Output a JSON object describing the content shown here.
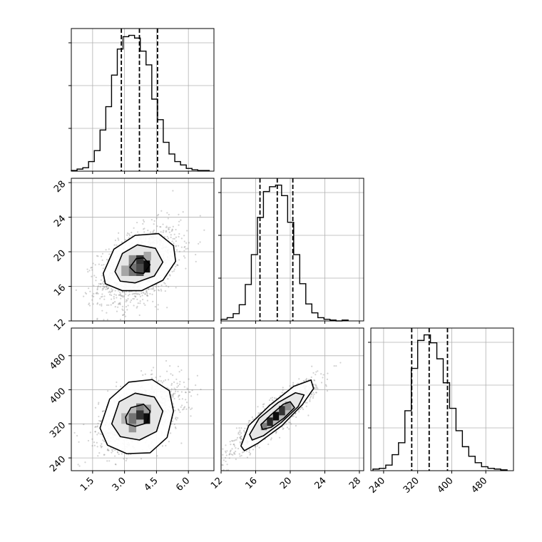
{
  "chart_data": {
    "type": "corner",
    "title": "",
    "grid": true,
    "colors": {
      "line": "#000000",
      "grid": "#b0b0b0",
      "points": "#7f7f7f"
    },
    "parameters": [
      {
        "index": 0,
        "range": [
          0.5,
          7.2
        ],
        "ticks": [
          1.5,
          3.0,
          4.5,
          6.0
        ],
        "tick_labels": [
          "1.5",
          "3.0",
          "4.5",
          "6.0"
        ],
        "quantiles": [
          2.85,
          3.7,
          4.55
        ]
      },
      {
        "index": 1,
        "range": [
          12,
          28.5
        ],
        "ticks": [
          12,
          16,
          20,
          24,
          28
        ],
        "tick_labels": [
          "12",
          "16",
          "20",
          "24",
          "28"
        ],
        "quantiles": [
          16.5,
          18.5,
          20.3
        ]
      },
      {
        "index": 2,
        "range": [
          210,
          545
        ],
        "ticks": [
          240,
          320,
          400,
          480
        ],
        "tick_labels": [
          "240",
          "320",
          "400",
          "480"
        ],
        "quantiles": [
          306,
          347,
          390
        ]
      }
    ],
    "histograms": [
      {
        "param": 0,
        "bin_edges": [
          0.5,
          0.77,
          1.04,
          1.31,
          1.58,
          1.85,
          2.12,
          2.39,
          2.66,
          2.93,
          3.2,
          3.47,
          3.74,
          4.01,
          4.28,
          4.55,
          4.82,
          5.09,
          5.36,
          5.63,
          5.9,
          6.17,
          6.44,
          6.71,
          6.98
        ],
        "counts": [
          1,
          3,
          5,
          14,
          30,
          60,
          94,
          140,
          178,
          196,
          198,
          194,
          175,
          155,
          105,
          75,
          42,
          25,
          14,
          9,
          4,
          2,
          1,
          1
        ]
      },
      {
        "param": 1,
        "bin_edges": [
          12.0,
          12.7,
          13.4,
          14.1,
          14.8,
          15.5,
          16.2,
          16.9,
          17.6,
          18.3,
          19.0,
          19.7,
          20.4,
          21.1,
          21.8,
          22.5,
          23.2,
          23.9,
          24.6,
          25.3,
          26.0,
          26.7
        ],
        "counts": [
          2,
          4,
          9,
          20,
          45,
          82,
          128,
          160,
          166,
          168,
          155,
          122,
          82,
          46,
          21,
          10,
          4,
          2,
          1,
          0,
          1
        ]
      },
      {
        "param": 2,
        "bin_edges": [
          215,
          230,
          245,
          260,
          275,
          290,
          305,
          320,
          335,
          350,
          365,
          380,
          395,
          410,
          425,
          440,
          455,
          470,
          485,
          500,
          515,
          530
        ],
        "counts": [
          2,
          3,
          7,
          20,
          35,
          75,
          128,
          163,
          170,
          160,
          140,
          110,
          78,
          50,
          30,
          18,
          10,
          5,
          3,
          2,
          1
        ]
      }
    ],
    "scatter_panels": [
      {
        "x_param": 0,
        "y_param": 1,
        "mean": [
          3.7,
          18.3
        ],
        "std": [
          0.95,
          2.3
        ],
        "corr": 0.45,
        "contours": [
          {
            "level": 1,
            "points": [
              [
                3.25,
                18.2
              ],
              [
                3.55,
                19.2
              ],
              [
                3.9,
                19.3
              ],
              [
                4.2,
                18.5
              ],
              [
                3.9,
                17.5
              ],
              [
                3.5,
                17.6
              ]
            ]
          },
          {
            "level": 2,
            "points": [
              [
                2.55,
                17.7
              ],
              [
                2.9,
                19.8
              ],
              [
                3.6,
                20.8
              ],
              [
                4.45,
                20.4
              ],
              [
                4.8,
                18.8
              ],
              [
                4.4,
                17.2
              ],
              [
                3.5,
                16.4
              ],
              [
                2.8,
                16.6
              ]
            ]
          },
          {
            "level": 3,
            "points": [
              [
                2.0,
                17.5
              ],
              [
                2.5,
                20.3
              ],
              [
                3.5,
                21.9
              ],
              [
                4.6,
                22.1
              ],
              [
                5.3,
                20.7
              ],
              [
                5.4,
                18.9
              ],
              [
                4.8,
                16.7
              ],
              [
                3.8,
                15.5
              ],
              [
                2.9,
                15.5
              ],
              [
                2.1,
                16.3
              ]
            ]
          }
        ],
        "density_cells": [
          {
            "x": [
              3.2,
              3.55
            ],
            "y": [
              17.2,
              18.6
            ],
            "level": 0.55
          },
          {
            "x": [
              3.55,
              3.9
            ],
            "y": [
              17.2,
              18.6
            ],
            "level": 0.7
          },
          {
            "x": [
              3.55,
              3.9
            ],
            "y": [
              18.6,
              19.6
            ],
            "level": 0.8
          },
          {
            "x": [
              3.9,
              4.2
            ],
            "y": [
              17.6,
              19.0
            ],
            "level": 0.95
          },
          {
            "x": [
              2.85,
              3.2
            ],
            "y": [
              17.2,
              18.4
            ],
            "level": 0.35
          },
          {
            "x": [
              3.2,
              3.55
            ],
            "y": [
              18.6,
              19.6
            ],
            "level": 0.45
          },
          {
            "x": [
              3.9,
              4.25
            ],
            "y": [
              19.0,
              20.0
            ],
            "level": 0.35
          }
        ]
      },
      {
        "x_param": 0,
        "y_param": 2,
        "mean": [
          3.7,
          340
        ],
        "std": [
          0.95,
          40
        ],
        "corr": 0.45,
        "contours": [
          {
            "level": 1,
            "points": [
              [
                3.05,
                336
              ],
              [
                3.3,
                358
              ],
              [
                3.9,
                366
              ],
              [
                4.2,
                350
              ],
              [
                4.05,
                322
              ],
              [
                3.5,
                314
              ],
              [
                3.1,
                320
              ]
            ]
          },
          {
            "level": 2,
            "points": [
              [
                2.4,
                320
              ],
              [
                2.75,
                372
              ],
              [
                3.5,
                392
              ],
              [
                4.4,
                383
              ],
              [
                4.8,
                350
              ],
              [
                4.5,
                302
              ],
              [
                3.7,
                282
              ],
              [
                2.8,
                290
              ]
            ]
          },
          {
            "level": 3,
            "points": [
              [
                1.85,
                310
              ],
              [
                2.3,
                378
              ],
              [
                3.2,
                418
              ],
              [
                4.3,
                424
              ],
              [
                5.1,
                398
              ],
              [
                5.3,
                350
              ],
              [
                5.0,
                288
              ],
              [
                4.2,
                252
              ],
              [
                3.1,
                250
              ],
              [
                2.2,
                270
              ]
            ]
          }
        ],
        "density_cells": [
          {
            "x": [
              3.55,
              3.9
            ],
            "y": [
              330,
              352
            ],
            "level": 0.8
          },
          {
            "x": [
              3.9,
              4.2
            ],
            "y": [
              320,
              345
            ],
            "level": 0.95
          },
          {
            "x": [
              3.2,
              3.55
            ],
            "y": [
              320,
              345
            ],
            "level": 0.55
          },
          {
            "x": [
              3.55,
              3.9
            ],
            "y": [
              352,
              368
            ],
            "level": 0.5
          },
          {
            "x": [
              2.85,
              3.2
            ],
            "y": [
              320,
              345
            ],
            "level": 0.3
          },
          {
            "x": [
              3.2,
              3.55
            ],
            "y": [
              300,
              320
            ],
            "level": 0.4
          },
          {
            "x": [
              3.9,
              4.25
            ],
            "y": [
              345,
              365
            ],
            "level": 0.4
          }
        ]
      },
      {
        "x_param": 1,
        "y_param": 2,
        "mean": [
          18.3,
          340
        ],
        "std": [
          2.3,
          40
        ],
        "corr": 0.9,
        "contours": [
          {
            "level": 1,
            "points": [
              [
                16.6,
                318
              ],
              [
                17.7,
                340
              ],
              [
                19.2,
                366
              ],
              [
                20.0,
                372
              ],
              [
                20.5,
                358
              ],
              [
                19.3,
                334
              ],
              [
                17.8,
                312
              ],
              [
                16.8,
                307
              ]
            ]
          },
          {
            "level": 2,
            "points": [
              [
                15.3,
                295
              ],
              [
                16.4,
                333
              ],
              [
                18.6,
                370
              ],
              [
                20.6,
                393
              ],
              [
                21.6,
                388
              ],
              [
                20.9,
                360
              ],
              [
                18.9,
                322
              ],
              [
                16.9,
                292
              ],
              [
                15.6,
                282
              ]
            ]
          },
          {
            "level": 3,
            "points": [
              [
                14.3,
                268
              ],
              [
                15.2,
                316
              ],
              [
                17.6,
                363
              ],
              [
                20.4,
                408
              ],
              [
                22.4,
                423
              ],
              [
                22.7,
                403
              ],
              [
                21.4,
                365
              ],
              [
                19.0,
                315
              ],
              [
                16.3,
                275
              ],
              [
                14.7,
                257
              ]
            ]
          }
        ],
        "density_cells": [
          {
            "x": [
              17.3,
              18.0
            ],
            "y": [
              315,
              335
            ],
            "level": 0.85
          },
          {
            "x": [
              18.0,
              18.7
            ],
            "y": [
              328,
              348
            ],
            "level": 0.95
          },
          {
            "x": [
              18.7,
              19.4
            ],
            "y": [
              340,
              362
            ],
            "level": 0.8
          },
          {
            "x": [
              16.6,
              17.3
            ],
            "y": [
              305,
              322
            ],
            "level": 0.5
          },
          {
            "x": [
              19.4,
              20.1
            ],
            "y": [
              352,
              372
            ],
            "level": 0.45
          }
        ]
      }
    ]
  }
}
